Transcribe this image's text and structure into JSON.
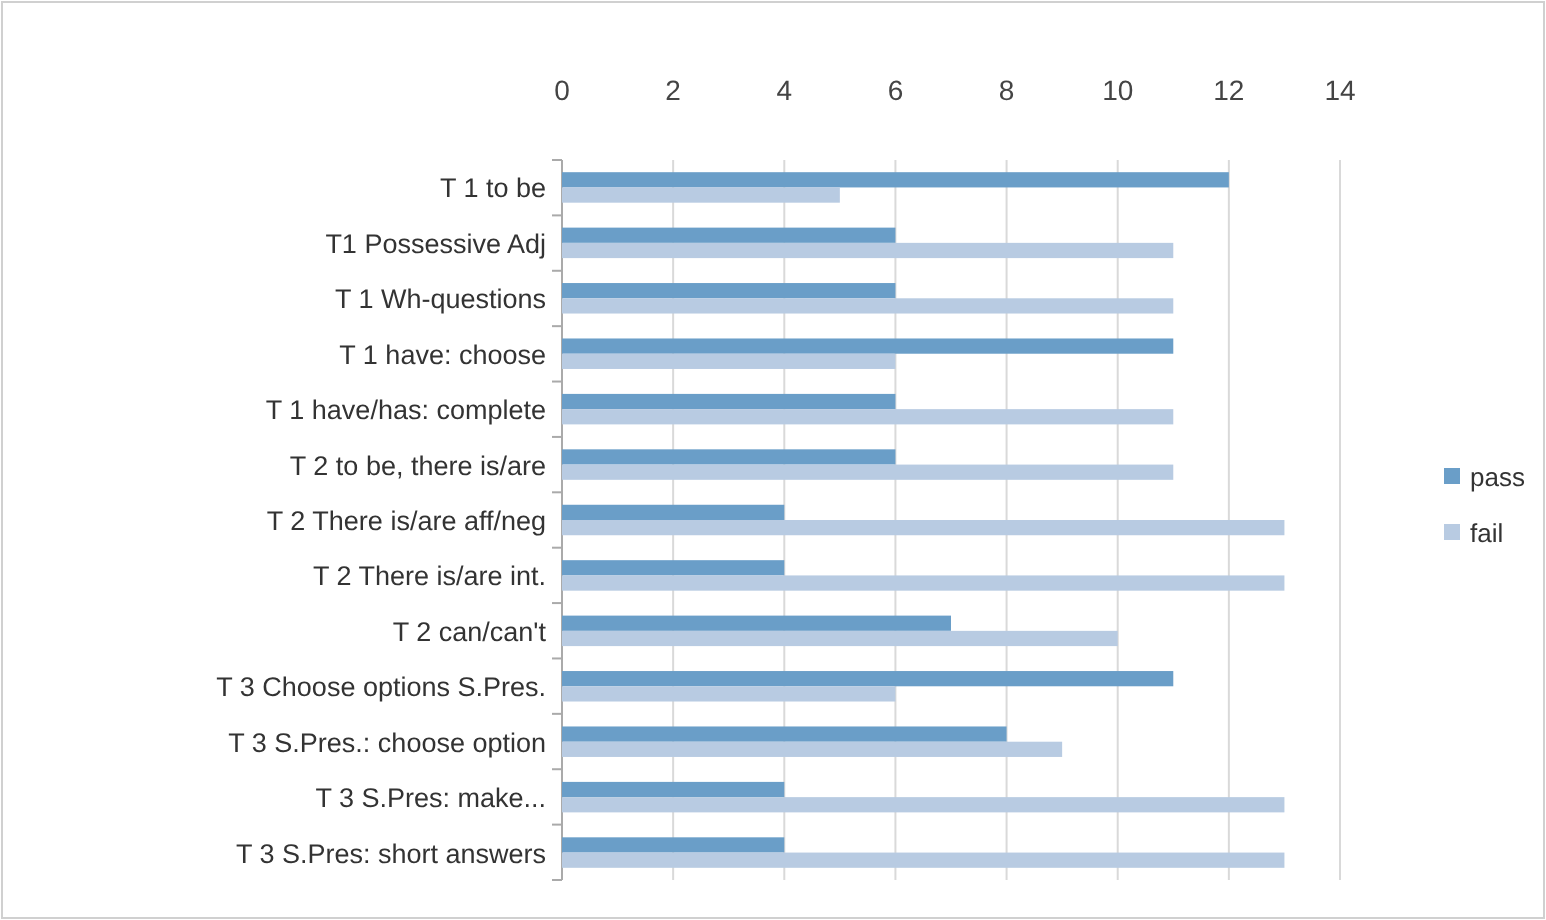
{
  "chart_data": {
    "type": "bar",
    "orientation": "horizontal",
    "categories": [
      "T 1 to be",
      "T1 Possessive Adj",
      "T 1 Wh-questions",
      "T 1 have: choose",
      "T 1 have/has: complete",
      "T 2 to be, there is/are",
      "T 2 There is/are aff/neg",
      "T 2 There is/are int.",
      "T 2 can/can't",
      "T 3 Choose options S.Pres.",
      "T 3 S.Pres.: choose option",
      "T 3 S.Pres: make...",
      "T 3 S.Pres: short answers"
    ],
    "series": [
      {
        "name": "pass",
        "color": "#6a9ec8",
        "values": [
          12,
          6,
          6,
          11,
          6,
          6,
          4,
          4,
          7,
          11,
          8,
          4,
          4
        ]
      },
      {
        "name": "fail",
        "color": "#b8cbe2",
        "values": [
          5,
          11,
          11,
          6,
          11,
          11,
          13,
          13,
          10,
          6,
          9,
          13,
          13
        ]
      }
    ],
    "xlim": [
      0,
      14
    ],
    "xticks": [
      0,
      2,
      4,
      6,
      8,
      10,
      12,
      14
    ],
    "grid": "x",
    "legend": "right"
  }
}
